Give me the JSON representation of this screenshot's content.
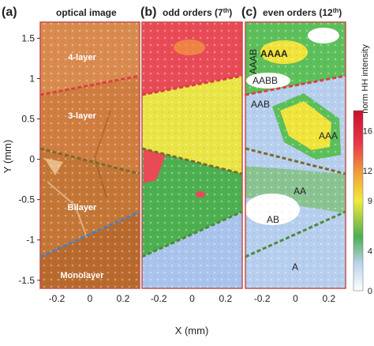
{
  "figure": {
    "panels": [
      {
        "letter": "(a)",
        "title": "optical image"
      },
      {
        "letter": "(b)",
        "title": "odd orders (7",
        "title_sup": "th",
        "title_end": ")"
      },
      {
        "letter": "(c)",
        "title": "even orders (12",
        "title_sup": "th",
        "title_end": ")"
      }
    ],
    "ylabel": "Y (mm)",
    "xlabel": "X (mm)",
    "colorbar_label": "norm HH intensity"
  },
  "chart_data": {
    "type": "heatmap",
    "y_ticks": [
      "1.5",
      "1",
      "0.5",
      "0",
      "-0.5",
      "-1",
      "-1.5"
    ],
    "y_tick_values": [
      1.5,
      1,
      0.5,
      0,
      -0.5,
      -1,
      -1.5
    ],
    "x_ticks": [
      "-0.2",
      "0",
      "0.2"
    ],
    "x_tick_values": [
      -0.2,
      0,
      0.2
    ],
    "xlim": [
      -0.3,
      0.3
    ],
    "ylim": [
      -1.6,
      1.7
    ],
    "colorbar": {
      "ticks": [
        "16",
        "12",
        "9",
        "4",
        "0"
      ],
      "tick_values": [
        16,
        12,
        9,
        4,
        0
      ],
      "range": [
        0,
        18
      ],
      "colors": [
        "#ffffff",
        "#bcd3ef",
        "#4caf50",
        "#f2ea3a",
        "#f2a13a",
        "#e8364a",
        "#c8102e"
      ]
    },
    "layer_labels": [
      "4-layer",
      "3-layer",
      "Bilayer",
      "Monolayer"
    ],
    "boundary_colors": [
      "#d94040",
      "#7a6a2a",
      "#4d8a3a",
      "#4a7fc0"
    ],
    "odd_region_colors": [
      "#e84a56",
      "#e9e545",
      "#4caf50",
      "#a9c4ec"
    ],
    "even_labels": [
      "AAAB",
      "AAAA",
      "AABB",
      "AAB",
      "AAA",
      "AA",
      "AB",
      "A"
    ]
  }
}
